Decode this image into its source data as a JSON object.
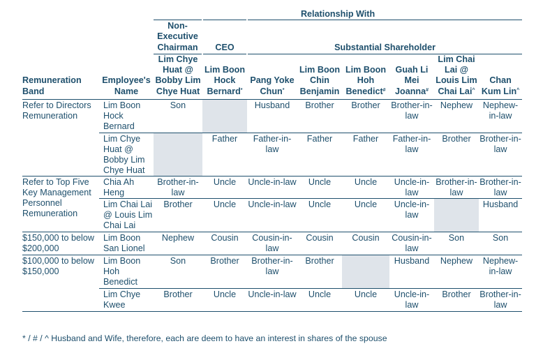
{
  "header": {
    "relationship_with": "Relationship With",
    "group_chairman": "Non-Executive Chairman",
    "group_ceo": "CEO",
    "group_substantial": "Substantial Shareholder",
    "band_col": "Remuneration Band",
    "employee_col": "Employee's Name",
    "relatives": [
      {
        "name": "Lim Chye Huat @ Bobby Lim Chye Huat",
        "mark": ""
      },
      {
        "name": "Lim Boon Hock Bernard",
        "mark": "*"
      },
      {
        "name": "Pang Yoke Chun",
        "mark": "*"
      },
      {
        "name": "Lim Boon Chin Benjamin",
        "mark": ""
      },
      {
        "name": "Lim Boon Hoh Benedict",
        "mark": "#"
      },
      {
        "name": "Guah Li Mei Joanna",
        "mark": "#"
      },
      {
        "name": "Lim Chai Lai @ Louis Lim Chai Lai",
        "mark": "^"
      },
      {
        "name": "Chan Kum Lin",
        "mark": "^"
      }
    ]
  },
  "rows": [
    {
      "band": "Refer to Directors Remuneration",
      "employee": "Lim Boon Hock Bernard",
      "cells": [
        "Son",
        "",
        "Husband",
        "Brother",
        "Brother",
        "Brother-in-law",
        "Nephew",
        "Nephew-in-law"
      ]
    },
    {
      "band": "",
      "employee": "Lim Chye Huat @ Bobby Lim Chye Huat",
      "cells": [
        "",
        "Father",
        "Father-in-law",
        "Father",
        "Father",
        "Father-in-law",
        "Brother",
        "Brother-in-law"
      ]
    },
    {
      "band": "Refer to Top Five Key Management Personnel Remuneration",
      "employee": "Chia Ah Heng",
      "cells": [
        "Brother-in-law",
        "Uncle",
        "Uncle-in-law",
        "Uncle",
        "Uncle",
        "Uncle-in-law",
        "Brother-in-law",
        "Brother-in-law"
      ]
    },
    {
      "band": "",
      "employee": "Lim Chai Lai @ Louis Lim Chai Lai",
      "cells": [
        "Brother",
        "Uncle",
        "Uncle-in-law",
        "Uncle",
        "Uncle",
        "Uncle-in-law",
        "",
        "Husband"
      ]
    },
    {
      "band": "$150,000 to below $200,000",
      "employee": "Lim Boon San Lionel",
      "cells": [
        "Nephew",
        "Cousin",
        "Cousin-in-law",
        "Cousin",
        "Cousin",
        "Cousin-in-law",
        "Son",
        "Son"
      ]
    },
    {
      "band": "$100,000 to below $150,000",
      "employee": "Lim Boon Hoh Benedict",
      "cells": [
        "Son",
        "Brother",
        "Brother-in-law",
        "Brother",
        "",
        "Husband",
        "Nephew",
        "Nephew-in-law"
      ]
    },
    {
      "band": "",
      "employee": "Lim Chye Kwee",
      "cells": [
        "Brother",
        "Uncle",
        "Uncle-in-law",
        "Uncle",
        "Uncle",
        "Uncle-in-law",
        "Brother",
        "Brother-in-law"
      ]
    }
  ],
  "footnote": "* / # / ^ Husband and Wife, therefore, each are deem to have an interest in shares of the spouse",
  "colors": {
    "text": "#1e4f6c",
    "shade": "#dfe4ea",
    "rule": "#1e4f6c"
  }
}
